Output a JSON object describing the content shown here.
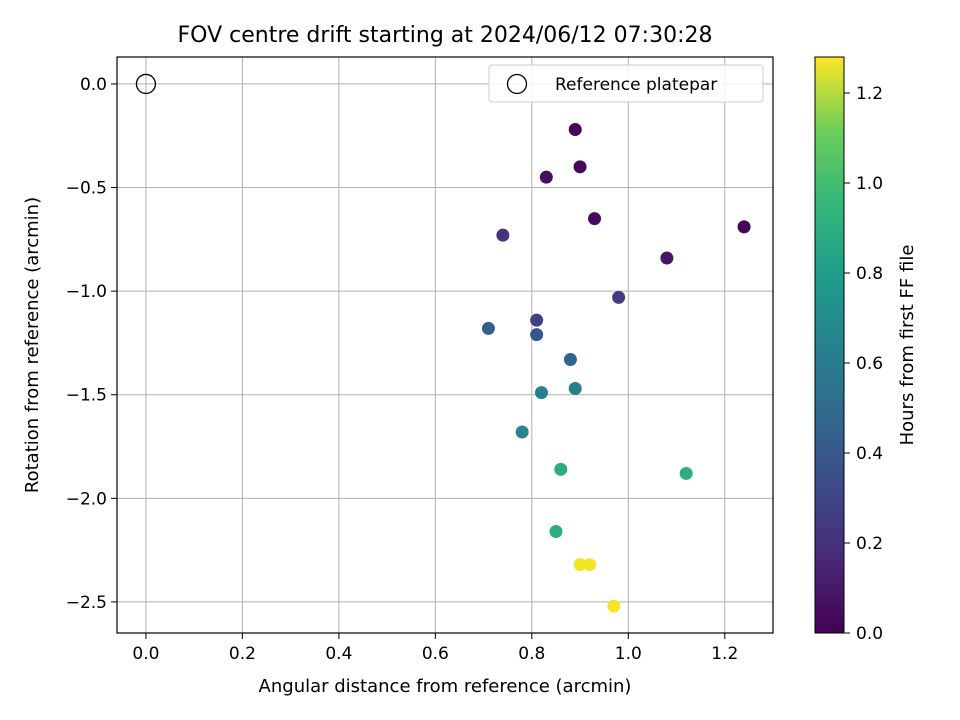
{
  "chart_data": {
    "type": "scatter",
    "title": "FOV centre drift starting at 2024/06/12 07:30:28",
    "xlabel": "Angular distance from reference (arcmin)",
    "ylabel": "Rotation from reference (arcmin)",
    "xlim": [
      -0.06,
      1.3
    ],
    "ylim": [
      -2.65,
      0.13
    ],
    "x_ticks": [
      0.0,
      0.2,
      0.4,
      0.6,
      0.8,
      1.0,
      1.2
    ],
    "x_tick_labels": [
      "0.0",
      "0.2",
      "0.4",
      "0.6",
      "0.8",
      "1.0",
      "1.2"
    ],
    "y_ticks": [
      0.0,
      -0.5,
      -1.0,
      -1.5,
      -2.0,
      -2.5
    ],
    "y_tick_labels": [
      "0.0",
      "−0.5",
      "−1.0",
      "−1.5",
      "−2.0",
      "−2.5"
    ],
    "grid": true,
    "legend": {
      "position": "top-right",
      "entries": [
        "Reference platepar"
      ]
    },
    "reference_point": {
      "name": "Reference platepar",
      "x": 0.0,
      "y": 0.0,
      "marker": "open-circle"
    },
    "colorbar": {
      "label": "Hours from first FF file",
      "range": [
        0.0,
        1.28
      ],
      "ticks": [
        0.0,
        0.2,
        0.4,
        0.6,
        0.8,
        1.0,
        1.2
      ],
      "tick_labels": [
        "0.0",
        "0.2",
        "0.4",
        "0.6",
        "0.8",
        "1.0",
        "1.2"
      ],
      "colormap": "viridis"
    },
    "points": [
      {
        "x": 0.89,
        "y": -0.22,
        "c": 0.02
      },
      {
        "x": 0.9,
        "y": -0.4,
        "c": 0.03
      },
      {
        "x": 0.83,
        "y": -0.45,
        "c": 0.06
      },
      {
        "x": 0.93,
        "y": -0.65,
        "c": 0.04
      },
      {
        "x": 1.24,
        "y": -0.69,
        "c": 0.02
      },
      {
        "x": 1.08,
        "y": -0.84,
        "c": 0.08
      },
      {
        "x": 0.74,
        "y": -0.73,
        "c": 0.22
      },
      {
        "x": 0.98,
        "y": -1.03,
        "c": 0.26
      },
      {
        "x": 0.81,
        "y": -1.14,
        "c": 0.28
      },
      {
        "x": 0.81,
        "y": -1.21,
        "c": 0.38
      },
      {
        "x": 0.71,
        "y": -1.18,
        "c": 0.42
      },
      {
        "x": 0.88,
        "y": -1.33,
        "c": 0.46
      },
      {
        "x": 0.82,
        "y": -1.49,
        "c": 0.62
      },
      {
        "x": 0.89,
        "y": -1.47,
        "c": 0.62
      },
      {
        "x": 0.78,
        "y": -1.68,
        "c": 0.66
      },
      {
        "x": 0.86,
        "y": -1.86,
        "c": 0.88
      },
      {
        "x": 1.12,
        "y": -1.88,
        "c": 0.9
      },
      {
        "x": 0.85,
        "y": -2.16,
        "c": 0.9
      },
      {
        "x": 0.9,
        "y": -2.32,
        "c": 1.27
      },
      {
        "x": 0.92,
        "y": -2.32,
        "c": 1.27
      },
      {
        "x": 0.97,
        "y": -2.52,
        "c": 1.27
      }
    ]
  }
}
